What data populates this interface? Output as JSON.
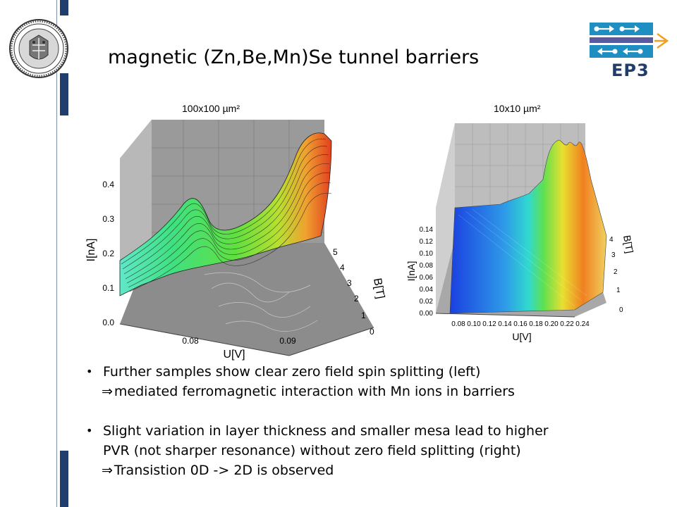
{
  "slide": {
    "title": "magnetic (Zn,Be,Mn)Se tunnel barriers",
    "logo_text": "EP3",
    "accent_color": "#1f3e6e"
  },
  "plots": {
    "left": {
      "caption": "100x100  µm²",
      "z_label": "I[nA]",
      "z_ticks": [
        "0.0",
        "0.1",
        "0.2",
        "0.3",
        "0.4"
      ],
      "x_label": "U[V]",
      "x_ticks": [
        "0.08",
        "0.09"
      ],
      "y_label": "B[T]",
      "y_ticks": [
        "0",
        "1",
        "2",
        "3",
        "4",
        "5"
      ]
    },
    "right": {
      "caption": "10x10  µm²",
      "z_label": "I[nA]",
      "z_ticks": [
        "0.00",
        "0.02",
        "0.04",
        "0.06",
        "0.08",
        "0.10",
        "0.12",
        "0.14"
      ],
      "x_label": "U[V]",
      "x_ticks": [
        "0.08",
        "0.10",
        "0.12",
        "0.14",
        "0.16",
        "0.18",
        "0.20",
        "0.22",
        "0.24"
      ],
      "y_label": "B[T]",
      "y_ticks": [
        "0",
        "1",
        "2",
        "3",
        "4"
      ]
    }
  },
  "bullets": [
    {
      "line1": "Further samples show clear zero field spin splitting (left)",
      "line2_symbol": "⇒",
      "line2": "mediated  ferromagnetic interaction with Mn ions in barriers"
    },
    {
      "line1": "Slight variation in layer thickness and smaller mesa lead to higher",
      "line2": "PVR (not sharper resonance) without zero field splitting (right)",
      "line3_symbol": "⇒",
      "line3": "Transistion 0D -> 2D is observed"
    }
  ],
  "bullet_symbol": "•"
}
